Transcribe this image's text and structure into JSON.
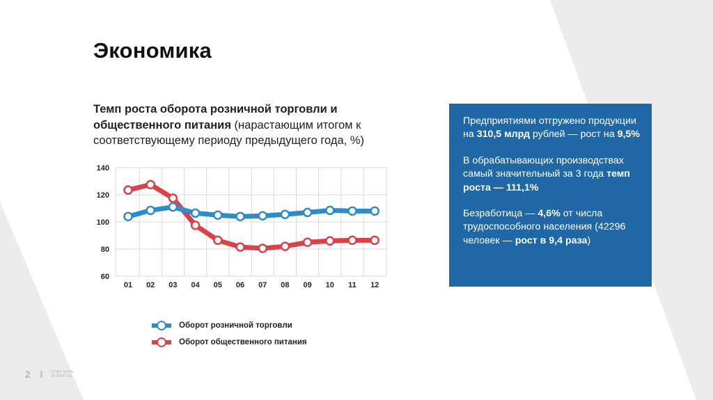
{
  "page": {
    "title": "Экономика",
    "number": "2",
    "footer_line1": "ОТЧЕТ МЭРА",
    "footer_line2": "ЗА 2020 ГОД"
  },
  "chart_heading": {
    "bold": "Темп роста оборота розничной торговли и общественного питания",
    "normal": "(нарастающим итогом к соответствующему периоду предыдущего года, %)"
  },
  "colors": {
    "retail": "#2e8cc6",
    "catering": "#d8434a",
    "grid": "#d9d9d9",
    "box": "#1f67a5"
  },
  "chart_data": {
    "type": "line",
    "title": "Темп роста оборота розничной торговли и общественного питания (нарастающим итогом к соответствующему периоду предыдущего года, %)",
    "categories": [
      "01",
      "02",
      "03",
      "04",
      "05",
      "06",
      "07",
      "08",
      "09",
      "10",
      "11",
      "12"
    ],
    "y_ticks": [
      60,
      80,
      100,
      120,
      140
    ],
    "ylim": [
      60,
      140
    ],
    "grid": true,
    "series": [
      {
        "name": "Оборот розничной торговли",
        "color": "#2e8cc6",
        "values": [
          104,
          108.5,
          111,
          106.5,
          105,
          104,
          104.5,
          105.5,
          107,
          108.5,
          108,
          108
        ]
      },
      {
        "name": "Оборот общественного питания",
        "color": "#d8434a",
        "values": [
          123.5,
          127.5,
          117.5,
          97.5,
          86.5,
          81.5,
          80.5,
          82,
          85,
          86,
          86.5,
          86.5
        ]
      }
    ]
  },
  "info": {
    "p1_a": "Предприятиями отгружено продукции на",
    "p1_b": "310,5 млрд",
    "p1_c": "рублей —  рост на",
    "p1_d": "9,5%",
    "p2_a": "В обрабатывающих производствах самый значительный за 3 года",
    "p2_b": "темп роста — 111,1%",
    "p3_a": "Безработица —",
    "p3_b": "4,6%",
    "p3_c": "от числа трудоспособного населения (42296 человек —",
    "p3_d": "рост в 9,4 раза",
    "p3_e": ")"
  }
}
